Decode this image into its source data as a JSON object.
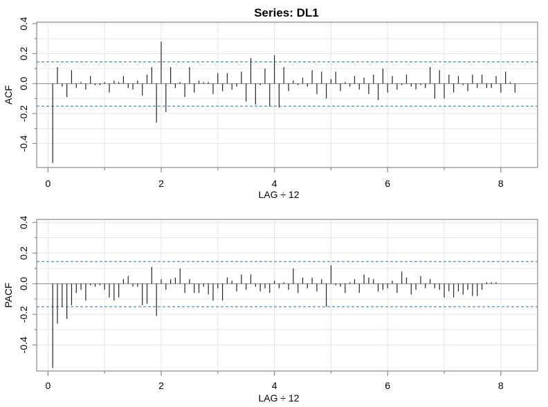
{
  "figure": {
    "title": "Series:  DL1"
  },
  "colors": {
    "bar": "#222222",
    "ci_line": "#1f77b4",
    "zero_line": "#9a9a9a",
    "grid": "#e6e6e6",
    "frame": "#888888"
  },
  "chart_data": [
    {
      "type": "bar",
      "name": "ACF",
      "ylabel": "ACF",
      "xlabel": "LAG ÷ 12",
      "xlim": [
        -0.2,
        8.65
      ],
      "ylim": [
        -0.56,
        0.41
      ],
      "xticks": [
        0,
        2,
        4,
        6,
        8
      ],
      "xticks_minor": [
        1,
        3,
        5,
        7
      ],
      "yticks": [
        -0.4,
        -0.2,
        0.0,
        0.2,
        0.4
      ],
      "yticks_minor": [
        -0.3,
        -0.1,
        0.1,
        0.3
      ],
      "ci": [
        0.145,
        -0.15
      ],
      "lag_step": 0.0833333,
      "values": [
        -0.53,
        0.11,
        -0.02,
        -0.09,
        0.09,
        -0.03,
        0.01,
        -0.04,
        0.05,
        -0.01,
        -0.01,
        0.01,
        -0.06,
        0.02,
        0.01,
        0.05,
        -0.03,
        -0.04,
        0.02,
        -0.08,
        0.06,
        0.11,
        -0.26,
        0.28,
        -0.19,
        0.11,
        -0.03,
        0.01,
        -0.09,
        0.11,
        -0.06,
        0.02,
        0.01,
        0.01,
        -0.07,
        0.07,
        -0.05,
        0.07,
        -0.04,
        -0.02,
        0.08,
        -0.12,
        0.17,
        -0.14,
        -0.01,
        0.1,
        -0.15,
        0.19,
        -0.16,
        0.11,
        -0.05,
        0.02,
        -0.01,
        0.04,
        -0.02,
        0.09,
        -0.07,
        0.08,
        -0.1,
        0.03,
        0.08,
        -0.05,
        0.01,
        -0.02,
        0.05,
        -0.04,
        0.04,
        -0.07,
        0.06,
        -0.11,
        0.1,
        -0.06,
        0.05,
        -0.04,
        -0.01,
        0.06,
        -0.02,
        -0.04,
        -0.01,
        -0.03,
        0.11,
        -0.1,
        0.09,
        -0.1,
        0.06,
        -0.06,
        0.05,
        -0.01,
        -0.05,
        0.06,
        -0.03,
        0.06,
        -0.03,
        -0.03,
        0.05,
        -0.06,
        0.08,
        0.01,
        -0.06,
        0.0
      ]
    },
    {
      "type": "bar",
      "name": "PACF",
      "ylabel": "PACF",
      "xlabel": "LAG ÷ 12",
      "xlim": [
        -0.2,
        8.65
      ],
      "ylim": [
        -0.57,
        0.42
      ],
      "xticks": [
        0,
        2,
        4,
        6,
        8
      ],
      "xticks_minor": [
        1,
        3,
        5,
        7
      ],
      "yticks": [
        -0.4,
        -0.2,
        0.0,
        0.2,
        0.4
      ],
      "yticks_minor": [
        -0.3,
        -0.1,
        0.1,
        0.3
      ],
      "ci": [
        0.145,
        -0.15
      ],
      "lag_step": 0.0833333,
      "values": [
        -0.55,
        -0.26,
        -0.15,
        -0.23,
        -0.14,
        -0.06,
        -0.04,
        -0.11,
        -0.01,
        -0.02,
        -0.01,
        -0.04,
        -0.09,
        -0.11,
        -0.09,
        0.03,
        0.05,
        -0.02,
        -0.02,
        -0.14,
        -0.13,
        0.11,
        -0.21,
        0.03,
        -0.04,
        0.03,
        0.04,
        0.1,
        -0.06,
        0.03,
        -0.06,
        -0.06,
        -0.02,
        -0.07,
        -0.11,
        -0.03,
        -0.11,
        0.04,
        0.02,
        -0.05,
        0.06,
        -0.04,
        0.06,
        -0.02,
        -0.05,
        -0.03,
        -0.06,
        0.02,
        -0.03,
        0.01,
        -0.04,
        0.1,
        -0.06,
        0.04,
        -0.03,
        0.04,
        -0.05,
        0.03,
        -0.15,
        0.12,
        -0.01,
        -0.02,
        -0.06,
        0.01,
        0.03,
        -0.06,
        0.06,
        0.04,
        0.03,
        -0.05,
        -0.04,
        -0.03,
        0.02,
        -0.06,
        0.08,
        0.04,
        -0.07,
        -0.04,
        0.05,
        -0.03,
        0.03,
        -0.03,
        -0.04,
        -0.09,
        -0.05,
        -0.09,
        -0.05,
        -0.07,
        -0.04,
        -0.08,
        -0.08,
        -0.04,
        0.01,
        0.01,
        0.01,
        0.0
      ]
    }
  ]
}
